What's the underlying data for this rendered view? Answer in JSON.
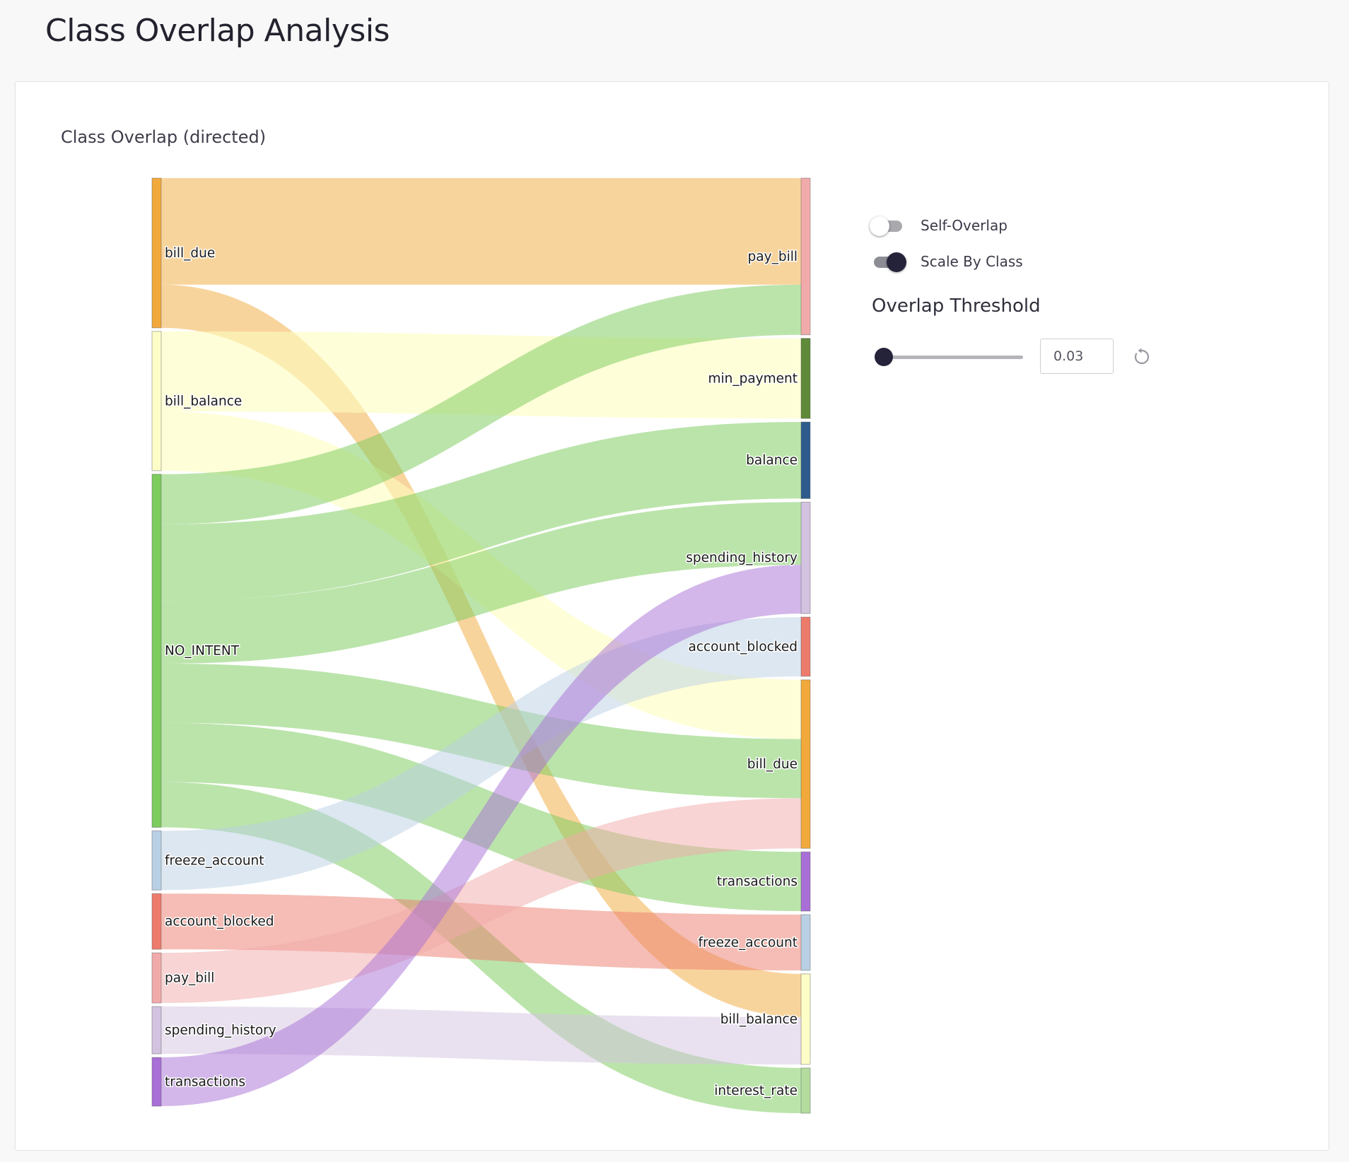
{
  "page": {
    "title": "Class Overlap Analysis"
  },
  "chart": {
    "title": "Class Overlap (directed)"
  },
  "controls": {
    "self_overlap": {
      "label": "Self-Overlap",
      "enabled": false
    },
    "scale_by_class": {
      "label": "Scale By Class",
      "enabled": true
    },
    "threshold": {
      "title": "Overlap Threshold",
      "value": "0.03",
      "slider_fraction": 0.0
    }
  },
  "icons": {
    "reset": "reset-icon"
  },
  "chart_data": {
    "type": "sankey",
    "title": "Class Overlap (directed)",
    "source_nodes": [
      {
        "name": "bill_due",
        "color": "#f2a93b"
      },
      {
        "name": "bill_balance",
        "color": "#fdfdc8"
      },
      {
        "name": "NO_INTENT",
        "color": "#7ccc5e"
      },
      {
        "name": "freeze_account",
        "color": "#b9d0e4"
      },
      {
        "name": "account_blocked",
        "color": "#ec7b6c"
      },
      {
        "name": "pay_bill",
        "color": "#f1aaaa"
      },
      {
        "name": "spending_history",
        "color": "#d3c3e0"
      },
      {
        "name": "transactions",
        "color": "#a86fd6"
      }
    ],
    "target_nodes": [
      {
        "name": "pay_bill",
        "color": "#f1aaaa"
      },
      {
        "name": "min_payment",
        "color": "#5e8a3a"
      },
      {
        "name": "balance",
        "color": "#2f5a8c"
      },
      {
        "name": "spending_history",
        "color": "#d3c3e0"
      },
      {
        "name": "account_blocked",
        "color": "#ec7b6c"
      },
      {
        "name": "bill_due",
        "color": "#f2a93b"
      },
      {
        "name": "transactions",
        "color": "#a86fd6"
      },
      {
        "name": "freeze_account",
        "color": "#b9d0e4"
      },
      {
        "name": "bill_balance",
        "color": "#fdfdc8"
      },
      {
        "name": "interest_rate",
        "color": "#b3dc9e"
      }
    ],
    "links": [
      {
        "source": "bill_due",
        "target": "pay_bill",
        "value": 1.53
      },
      {
        "source": "bill_due",
        "target": "bill_balance",
        "value": 0.62
      },
      {
        "source": "bill_balance",
        "target": "min_payment",
        "value": 1.15
      },
      {
        "source": "bill_balance",
        "target": "bill_due",
        "value": 0.85
      },
      {
        "source": "NO_INTENT",
        "target": "pay_bill",
        "value": 0.72
      },
      {
        "source": "NO_INTENT",
        "target": "balance",
        "value": 1.1
      },
      {
        "source": "NO_INTENT",
        "target": "spending_history",
        "value": 0.9
      },
      {
        "source": "NO_INTENT",
        "target": "bill_due",
        "value": 0.85
      },
      {
        "source": "NO_INTENT",
        "target": "transactions",
        "value": 0.85
      },
      {
        "source": "NO_INTENT",
        "target": "interest_rate",
        "value": 0.65
      },
      {
        "source": "freeze_account",
        "target": "account_blocked",
        "value": 0.85
      },
      {
        "source": "account_blocked",
        "target": "freeze_account",
        "value": 0.8
      },
      {
        "source": "pay_bill",
        "target": "bill_due",
        "value": 0.72
      },
      {
        "source": "spending_history",
        "target": "bill_balance",
        "value": 0.68
      },
      {
        "source": "transactions",
        "target": "spending_history",
        "value": 0.7
      }
    ]
  }
}
